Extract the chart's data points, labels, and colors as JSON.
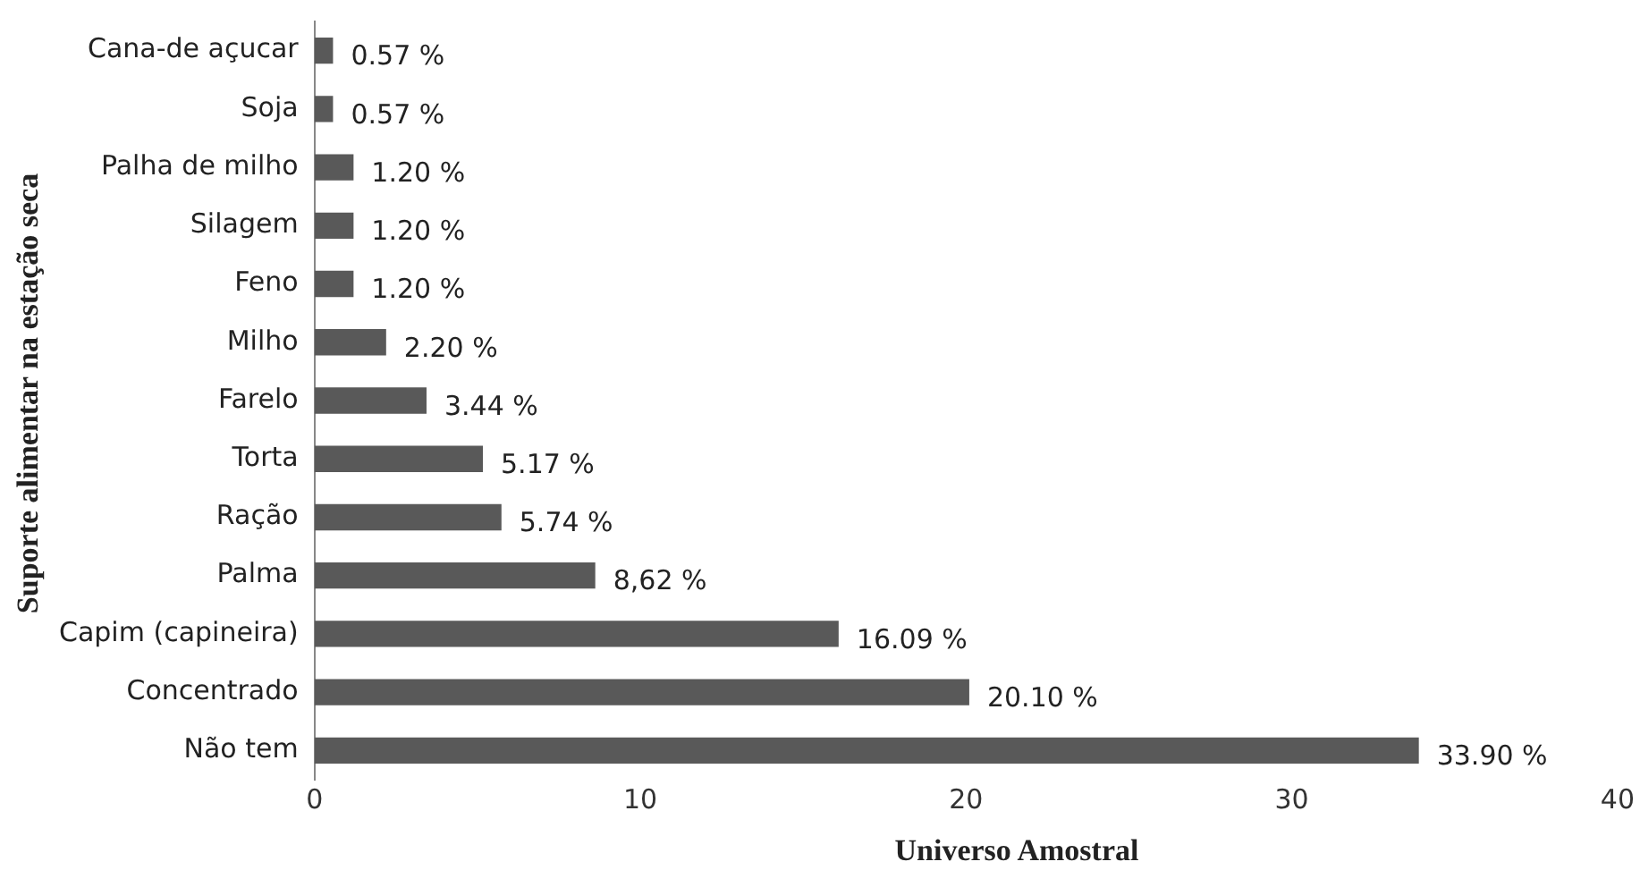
{
  "chart_data": {
    "type": "bar",
    "orientation": "horizontal",
    "xlabel": "Universo Amostral",
    "ylabel": "Suporte alimentar na estação seca",
    "categories": [
      "Cana-de açucar",
      "Soja",
      "Palha de milho",
      "Silagem",
      "Feno",
      "Milho",
      "Farelo",
      "Torta",
      "Ração",
      "Palma",
      "Capim (capineira)",
      "Concentrado",
      "Não tem"
    ],
    "values": [
      0.57,
      0.57,
      1.2,
      1.2,
      1.2,
      2.2,
      3.44,
      5.17,
      5.74,
      8.62,
      16.09,
      20.1,
      33.9
    ],
    "value_labels": [
      "0.57 %",
      "0.57 %",
      "1.20 %",
      "1.20 %",
      "1.20 %",
      "2.20 %",
      "3.44 %",
      "5.17 %",
      "5.74 %",
      "8,62 %",
      "16.09 %",
      "20.10 %",
      "33.90 %"
    ],
    "color": "#595959",
    "xlim": [
      0,
      40
    ],
    "xticks": [
      0,
      10,
      20,
      30,
      40
    ],
    "grid": false,
    "legend": false
  }
}
